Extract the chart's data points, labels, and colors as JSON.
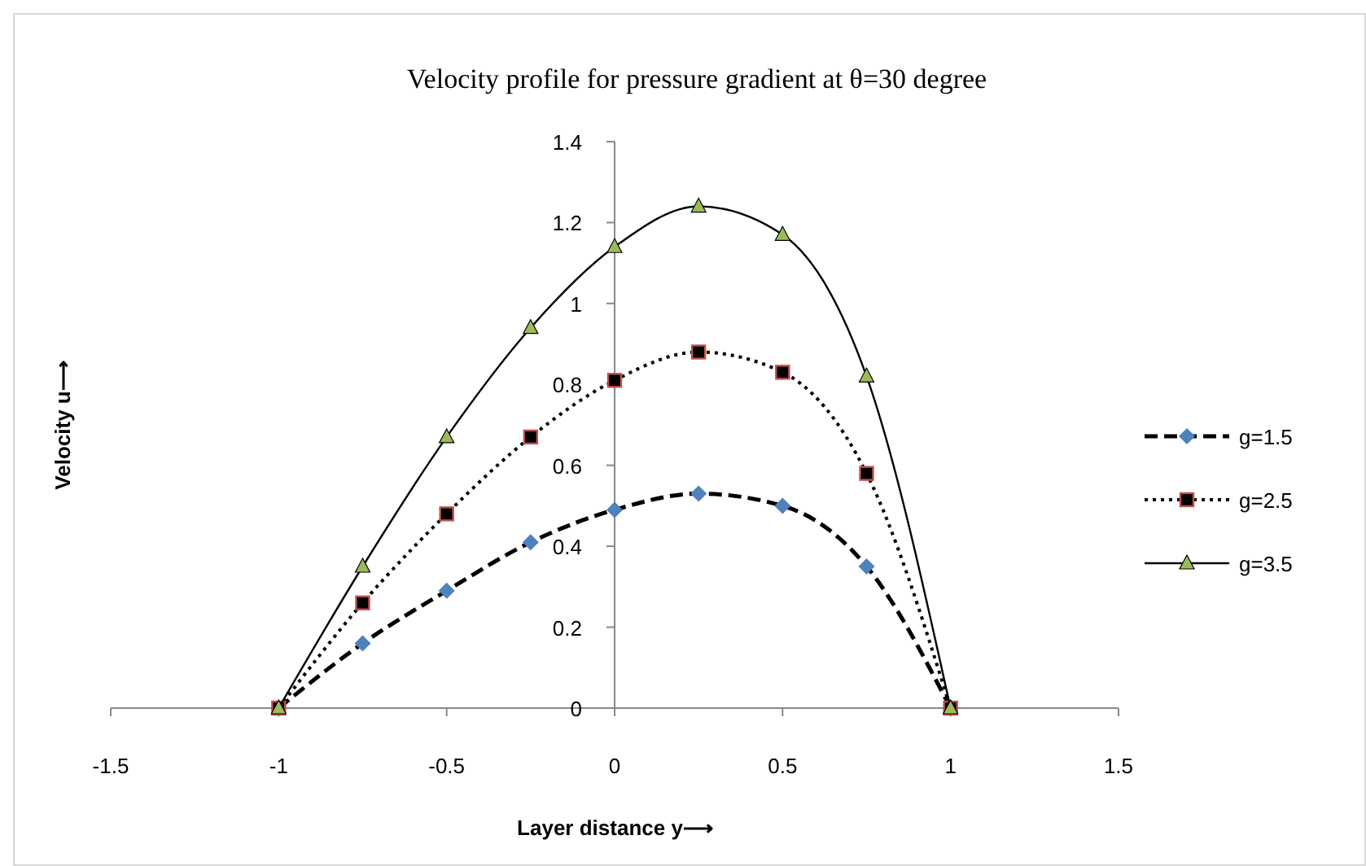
{
  "chart_data": {
    "type": "line",
    "title": "Velocity profile for pressure gradient at θ=30 degree",
    "xlabel": "Layer distance  y⟶",
    "ylabel": "Velocity u⟶",
    "x": [
      -1,
      -0.75,
      -0.5,
      -0.25,
      0,
      0.25,
      0.5,
      0.75,
      1
    ],
    "series": [
      {
        "name": "g=1.5",
        "color": "#4f81bd",
        "marker": "diamond",
        "line_style": "dashed",
        "values": [
          0,
          0.16,
          0.29,
          0.41,
          0.49,
          0.53,
          0.5,
          0.35,
          0
        ]
      },
      {
        "name": "g=2.5",
        "color": "#c0504d",
        "marker": "square",
        "line_style": "dotted",
        "values": [
          0,
          0.26,
          0.48,
          0.67,
          0.81,
          0.88,
          0.83,
          0.58,
          0
        ]
      },
      {
        "name": "g=3.5",
        "color": "#9bbb59",
        "marker": "triangle",
        "line_style": "solid",
        "values": [
          0,
          0.35,
          0.67,
          0.94,
          1.14,
          1.24,
          1.17,
          0.82,
          0
        ]
      }
    ],
    "xlim": [
      -1.5,
      1.5
    ],
    "xticks": [
      -1.5,
      -1,
      -0.5,
      0,
      0.5,
      1,
      1.5
    ],
    "ylim": [
      0,
      1.4
    ],
    "yticks": [
      0,
      0.2,
      0.4,
      0.6,
      0.8,
      1,
      1.2,
      1.4
    ],
    "grid": false,
    "legend": "right"
  }
}
